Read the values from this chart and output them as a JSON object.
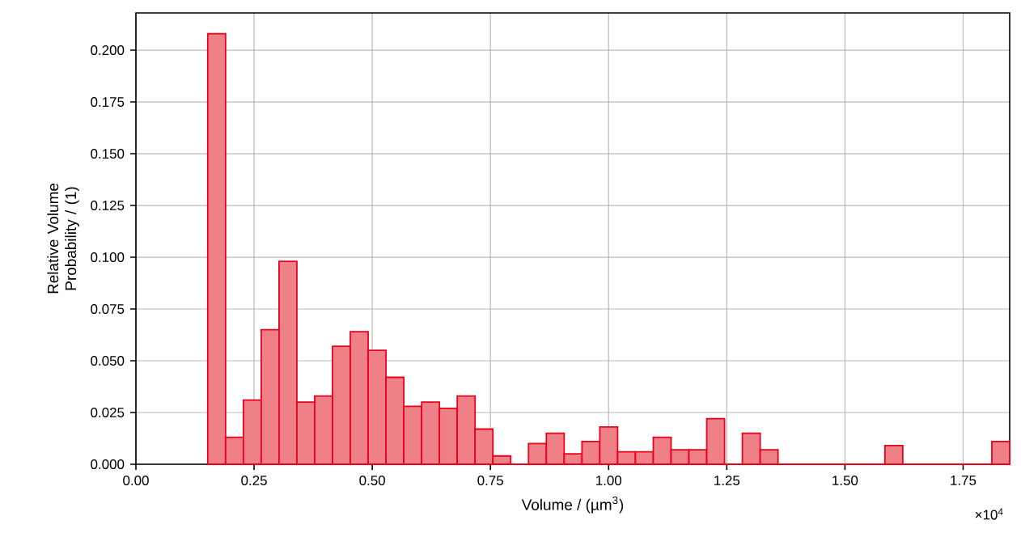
{
  "chart_data": {
    "type": "histogram",
    "xlabel": "Volume / (µm$^{3}$)",
    "ylabel": "Relative Volume Probability / (1)",
    "annotations": [
      "×10$^{4}$"
    ],
    "bins": [
      0.152,
      0.1897,
      0.2274,
      0.2651,
      0.3028,
      0.3405,
      0.3782,
      0.4159,
      0.4536,
      0.4913,
      0.529,
      0.5667,
      0.6044,
      0.6421,
      0.6798,
      0.7175,
      0.7552,
      0.7929,
      0.8306,
      0.8683,
      0.906,
      0.9437,
      0.9814,
      1.0191,
      1.0568,
      1.0945,
      1.1322,
      1.1699,
      1.2076,
      1.2453,
      1.283,
      1.3207,
      1.3584,
      1.3961,
      1.4338,
      1.4715,
      1.5092,
      1.5469,
      1.5846,
      1.6223,
      1.66,
      1.6977,
      1.7354,
      1.7731,
      1.8108,
      1.8485
    ],
    "values": [
      0.208,
      0.013,
      0.031,
      0.065,
      0.098,
      0.03,
      0.033,
      0.057,
      0.064,
      0.055,
      0.042,
      0.028,
      0.03,
      0.027,
      0.033,
      0.017,
      0.004,
      0,
      0.01,
      0.015,
      0.005,
      0.011,
      0.018,
      0.006,
      0.006,
      0.013,
      0.007,
      0.007,
      0.022,
      0,
      0.015,
      0.007,
      0,
      0,
      0,
      0,
      0,
      0,
      0.009,
      0,
      0,
      0,
      0,
      0,
      0.011
    ],
    "color": "#f08088",
    "xlim": [
      0,
      1.8485
    ],
    "ylim": [
      0,
      0.218
    ],
    "xticks": [
      {
        "value": 0,
        "label": "0.00"
      },
      0.25,
      {
        "value": 0.5,
        "label": "0.50"
      },
      0.75,
      {
        "value": 1,
        "label": "1.00"
      },
      1.25,
      {
        "value": 1.5,
        "label": "1.50"
      },
      1.75
    ],
    "yticks": [
      {
        "value": 0,
        "label": "0.000"
      },
      0.025,
      {
        "value": 0.05,
        "label": "0.050"
      },
      0.075,
      {
        "value": 0.1,
        "label": "0.100"
      },
      0.125,
      {
        "value": 0.15,
        "label": "0.150"
      },
      0.175,
      {
        "value": 0.2,
        "label": "0.200"
      }
    ],
    "grid": true
  }
}
